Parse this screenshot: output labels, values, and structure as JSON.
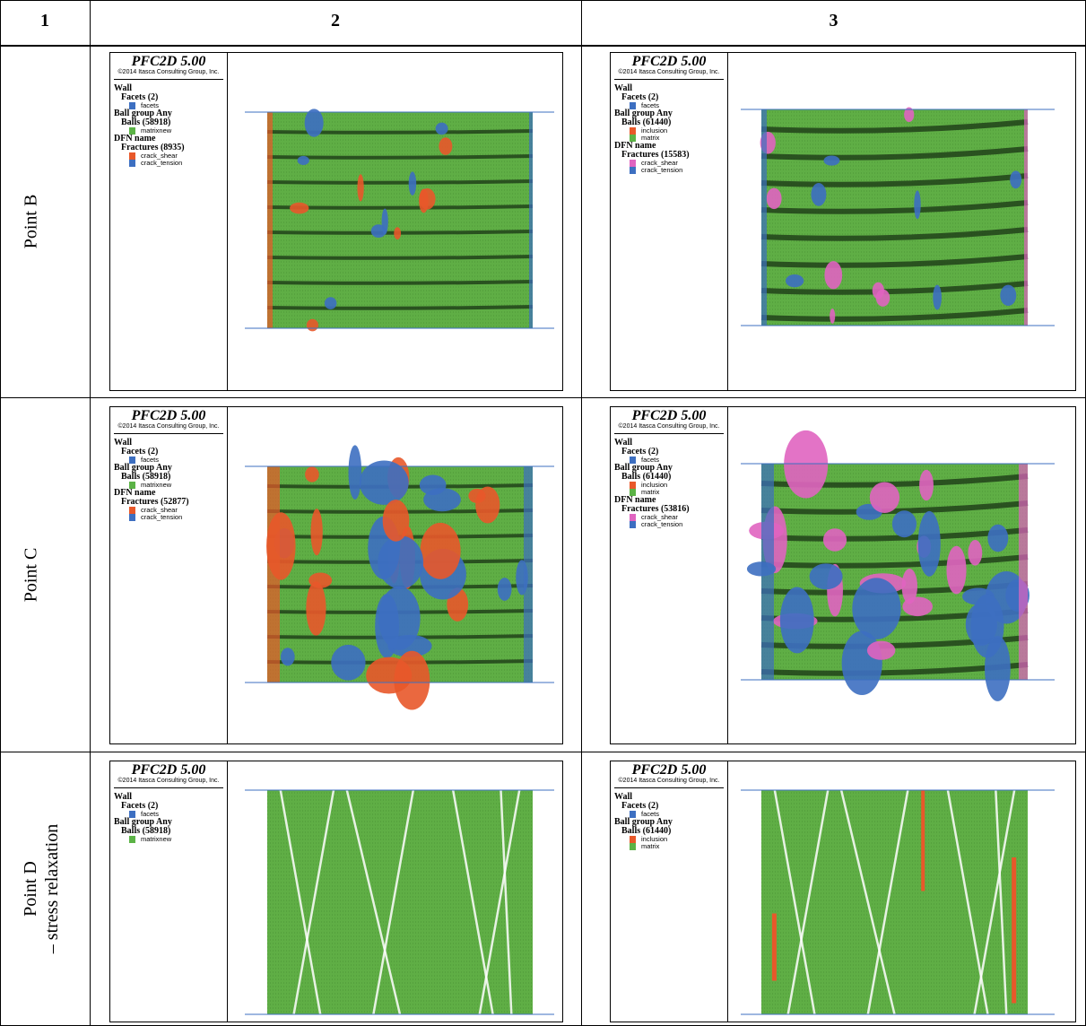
{
  "table": {
    "header": [
      "1",
      "2",
      "3"
    ],
    "rows": [
      {
        "label": [
          "Point B"
        ],
        "cells": [
          {
            "title": "PFC2D 5.00",
            "copyright": "©2014 Itasca Consulting Group, Inc.",
            "legend": [
              {
                "heading": "Wall",
                "groups": [
                  {
                    "heading": "Facets (2)",
                    "keys": [
                      {
                        "label": "facets",
                        "color": "#3d6fc1"
                      }
                    ]
                  }
                ]
              },
              {
                "heading": "Ball group Any",
                "groups": [
                  {
                    "heading": "Balls (58918)",
                    "keys": [
                      {
                        "label": "matrixnew",
                        "color": "#5bb346"
                      }
                    ]
                  }
                ]
              },
              {
                "heading": "DFN name",
                "groups": [
                  {
                    "heading": "Fractures (8935)",
                    "keys": [
                      {
                        "label": "crack_shear",
                        "color": "#e8582a"
                      },
                      {
                        "label": "crack_tension",
                        "color": "#3d6fc1"
                      }
                    ]
                  }
                ]
              }
            ]
          },
          {
            "title": "PFC2D 5.00",
            "copyright": "©2014 Itasca Consulting Group, Inc.",
            "legend": [
              {
                "heading": "Wall",
                "groups": [
                  {
                    "heading": "Facets (2)",
                    "keys": [
                      {
                        "label": "facets",
                        "color": "#3d6fc1"
                      }
                    ]
                  }
                ]
              },
              {
                "heading": "Ball group Any",
                "groups": [
                  {
                    "heading": "Balls (61440)",
                    "keys": [
                      {
                        "label": "inclusion",
                        "color": "#e8582a"
                      },
                      {
                        "label": "matrix",
                        "color": "#5bb346"
                      }
                    ]
                  }
                ]
              },
              {
                "heading": "DFN name",
                "groups": [
                  {
                    "heading": "Fractures (15583)",
                    "keys": [
                      {
                        "label": "crack_shear",
                        "color": "#e064c0"
                      },
                      {
                        "label": "crack_tension",
                        "color": "#3d6fc1"
                      }
                    ]
                  }
                ]
              }
            ]
          }
        ]
      },
      {
        "label": [
          "Point C"
        ],
        "cells": [
          {
            "title": "PFC2D 5.00",
            "copyright": "©2014 Itasca Consulting Group, Inc.",
            "legend": [
              {
                "heading": "Wall",
                "groups": [
                  {
                    "heading": "Facets (2)",
                    "keys": [
                      {
                        "label": "facets",
                        "color": "#3d6fc1"
                      }
                    ]
                  }
                ]
              },
              {
                "heading": "Ball group Any",
                "groups": [
                  {
                    "heading": "Balls (58918)",
                    "keys": [
                      {
                        "label": "matrixnew",
                        "color": "#5bb346"
                      }
                    ]
                  }
                ]
              },
              {
                "heading": "DFN name",
                "groups": [
                  {
                    "heading": "Fractures (52877)",
                    "keys": [
                      {
                        "label": "crack_shear",
                        "color": "#e8582a"
                      },
                      {
                        "label": "crack_tension",
                        "color": "#3d6fc1"
                      }
                    ]
                  }
                ]
              }
            ]
          },
          {
            "title": "PFC2D 5.00",
            "copyright": "©2014 Itasca Consulting Group, Inc.",
            "legend": [
              {
                "heading": "Wall",
                "groups": [
                  {
                    "heading": "Facets (2)",
                    "keys": [
                      {
                        "label": "facets",
                        "color": "#3d6fc1"
                      }
                    ]
                  }
                ]
              },
              {
                "heading": "Ball group Any",
                "groups": [
                  {
                    "heading": "Balls (61440)",
                    "keys": [
                      {
                        "label": "inclusion",
                        "color": "#e8582a"
                      },
                      {
                        "label": "matrix",
                        "color": "#5bb346"
                      }
                    ]
                  }
                ]
              },
              {
                "heading": "DFN name",
                "groups": [
                  {
                    "heading": "Fractures (53816)",
                    "keys": [
                      {
                        "label": "crack_shear",
                        "color": "#e064c0"
                      },
                      {
                        "label": "crack_tension",
                        "color": "#3d6fc1"
                      }
                    ]
                  }
                ]
              }
            ]
          }
        ]
      },
      {
        "label": [
          "Point D",
          "– stress relaxation"
        ],
        "cells": [
          {
            "title": "PFC2D 5.00",
            "copyright": "©2014 Itasca Consulting Group, Inc.",
            "legend": [
              {
                "heading": "Wall",
                "groups": [
                  {
                    "heading": "Facets (2)",
                    "keys": [
                      {
                        "label": "facets",
                        "color": "#3d6fc1"
                      }
                    ]
                  }
                ]
              },
              {
                "heading": "Ball group Any",
                "groups": [
                  {
                    "heading": "Balls (58918)",
                    "keys": [
                      {
                        "label": "matrixnew",
                        "color": "#5bb346"
                      }
                    ]
                  }
                ]
              }
            ]
          },
          {
            "title": "PFC2D 5.00",
            "copyright": "©2014 Itasca Consulting Group, Inc.",
            "legend": [
              {
                "heading": "Wall",
                "groups": [
                  {
                    "heading": "Facets (2)",
                    "keys": [
                      {
                        "label": "facets",
                        "color": "#3d6fc1"
                      }
                    ]
                  }
                ]
              },
              {
                "heading": "Ball group Any",
                "groups": [
                  {
                    "heading": "Balls (61440)",
                    "keys": [
                      {
                        "label": "inclusion",
                        "color": "#e8582a"
                      },
                      {
                        "label": "matrix",
                        "color": "#5bb346"
                      }
                    ]
                  }
                ]
              }
            ]
          }
        ]
      }
    ]
  }
}
